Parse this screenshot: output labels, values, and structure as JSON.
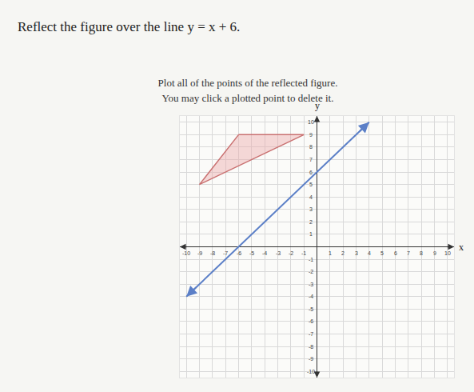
{
  "chart_data": {
    "type": "scatter",
    "title": "Reflect the figure over the line y = x + 6.",
    "annotations": [
      "Plot all of the points of the reflected figure.",
      "You may click a plotted point to delete it."
    ],
    "xlabel": "x",
    "ylabel": "y",
    "xlim": [
      -10.5,
      10.5
    ],
    "ylim": [
      -10.5,
      10.5
    ],
    "xticks": [
      -10,
      -9,
      -8,
      -7,
      -6,
      -5,
      -4,
      -3,
      -2,
      -1,
      1,
      2,
      3,
      4,
      5,
      6,
      7,
      8,
      9,
      10
    ],
    "yticks": [
      -10,
      -9,
      -8,
      -7,
      -6,
      -5,
      -4,
      -3,
      -2,
      -1,
      1,
      2,
      3,
      4,
      5,
      6,
      7,
      8,
      9,
      10
    ],
    "grid": true,
    "series": [
      {
        "type": "polygon",
        "color": "#c97070",
        "x": [
          -6,
          -1,
          -9
        ],
        "values": [
          9,
          9,
          5
        ]
      },
      {
        "type": "line",
        "color": "#5b7fc7",
        "marker": "arrow",
        "x": [
          -10,
          4
        ],
        "values": [
          -4,
          10
        ]
      }
    ]
  }
}
